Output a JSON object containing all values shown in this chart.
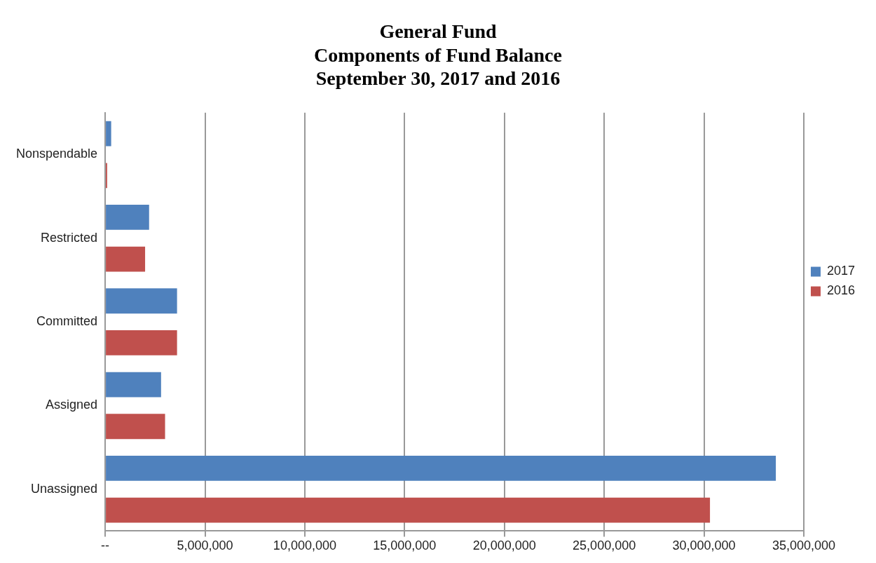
{
  "chart_data": {
    "type": "bar",
    "orientation": "horizontal",
    "title": "General Fund\nComponents of Fund Balance\nSeptember 30, 2017 and 2016",
    "categories": [
      "Nonspendable",
      "Restricted",
      "Committed",
      "Assigned",
      "Unassigned"
    ],
    "series": [
      {
        "name": "2017",
        "color": "#4f81bd",
        "values": [
          300000,
          2200000,
          3600000,
          2800000,
          33600000
        ]
      },
      {
        "name": "2016",
        "color": "#c0504d",
        "values": [
          100000,
          2000000,
          3600000,
          3000000,
          30300000
        ]
      }
    ],
    "xlim": [
      0,
      35000000
    ],
    "xticks": [
      {
        "value": 0,
        "label": "--"
      },
      {
        "value": 5000000,
        "label": "5,000,000"
      },
      {
        "value": 10000000,
        "label": "10,000,000"
      },
      {
        "value": 15000000,
        "label": "15,000,000"
      },
      {
        "value": 20000000,
        "label": "20,000,000"
      },
      {
        "value": 25000000,
        "label": "25,000,000"
      },
      {
        "value": 30000000,
        "label": "30,000,000"
      },
      {
        "value": 35000000,
        "label": "35,000,000"
      }
    ],
    "grid": "x",
    "legend": "right"
  }
}
